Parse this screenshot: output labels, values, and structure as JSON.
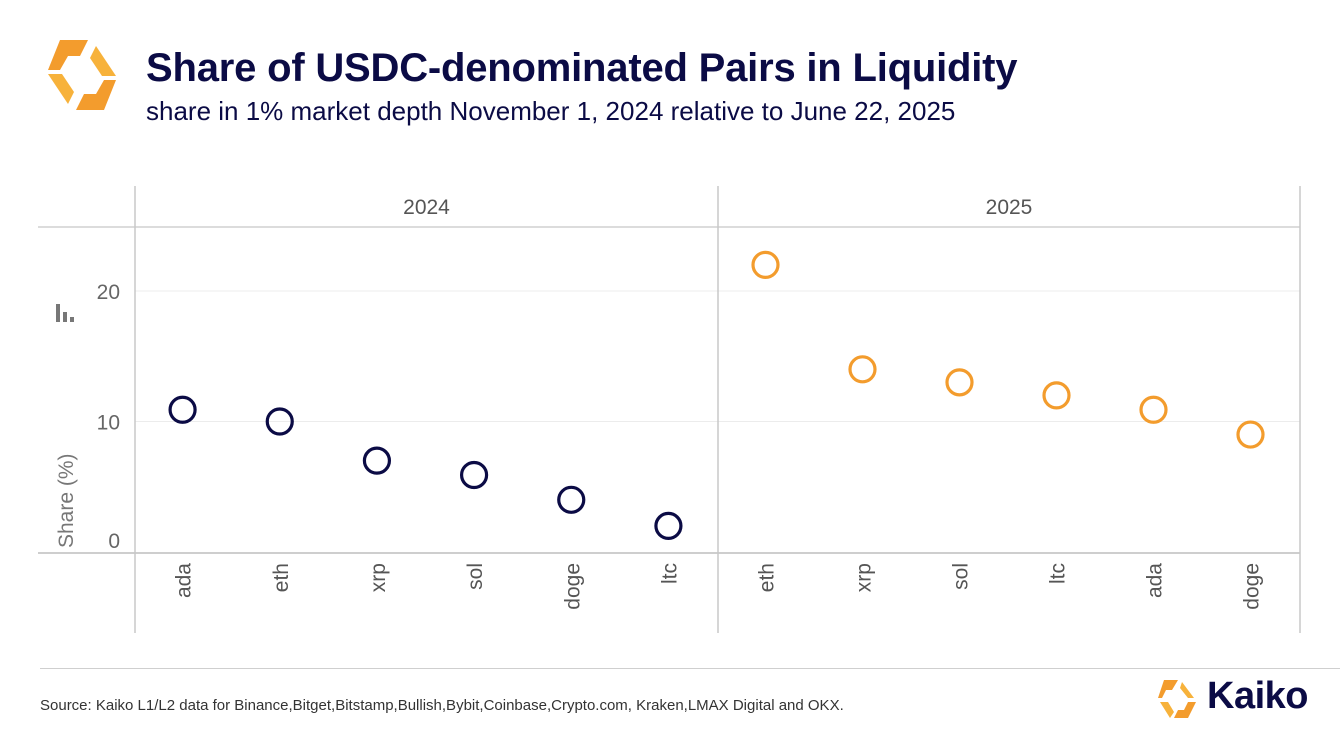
{
  "header": {
    "title": "Share of USDC-denominated Pairs in Liquidity",
    "subtitle": "share in 1% market depth November 1, 2024 relative to June 22, 2025"
  },
  "footer": {
    "source": "Source: Kaiko L1/L2 data for Binance,Bitget,Bitstamp,Bullish,Bybit,Coinbase,Crypto.com, Kraken,LMAX Digital and OKX.",
    "brand": "Kaiko"
  },
  "colors": {
    "accent": "#f39c2d",
    "navy": "#0b0b45",
    "series_2024": "#0b0b45",
    "series_2025": "#f39c2d"
  },
  "chart_data": {
    "type": "scatter",
    "ylabel": "Share (%)",
    "ylim": [
      0,
      25
    ],
    "yticks": [
      0,
      10,
      20
    ],
    "grid": true,
    "legend": "none",
    "facets": [
      {
        "name": "2024",
        "categories": [
          "ada",
          "eth",
          "xrp",
          "sol",
          "doge",
          "ltc"
        ],
        "values": [
          10.9,
          10.0,
          7.0,
          5.9,
          4.0,
          2.0
        ],
        "color": "#0b0b45"
      },
      {
        "name": "2025",
        "categories": [
          "eth",
          "xrp",
          "sol",
          "ltc",
          "ada",
          "doge"
        ],
        "values": [
          22.0,
          14.0,
          13.0,
          12.0,
          10.9,
          9.0
        ],
        "color": "#f39c2d"
      }
    ]
  }
}
